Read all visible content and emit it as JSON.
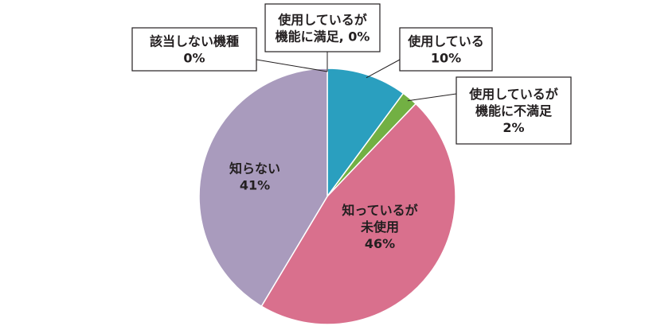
{
  "chart_data": {
    "type": "pie",
    "slices": [
      {
        "key": "used_satisfied",
        "lines": [
          "使用しているが",
          "機能に満足, 0%"
        ],
        "value": 0,
        "color": "#2a9fbf",
        "label_placement": "callout"
      },
      {
        "key": "used",
        "lines": [
          "使用している",
          "10%"
        ],
        "value": 10,
        "color": "#2a9fbf",
        "label_placement": "callout"
      },
      {
        "key": "used_unsatisfied",
        "lines": [
          "使用しているが",
          "機能に不満足",
          "2%"
        ],
        "value": 2,
        "color": "#72b043",
        "label_placement": "callout"
      },
      {
        "key": "known_unused",
        "lines": [
          "知っているが",
          "未使用",
          "46%"
        ],
        "value": 46,
        "color": "#d9708d",
        "label_placement": "inside"
      },
      {
        "key": "unknown",
        "lines": [
          "知らない",
          "41%"
        ],
        "value": 41,
        "color": "#a99bbd",
        "label_placement": "inside"
      },
      {
        "key": "not_applicable",
        "lines": [
          "該当しない機種",
          "0%"
        ],
        "value": 0,
        "color": "#a99bbd",
        "label_placement": "callout"
      }
    ],
    "start": "top",
    "direction": "clockwise",
    "slice_border_color": "#ffffff"
  }
}
